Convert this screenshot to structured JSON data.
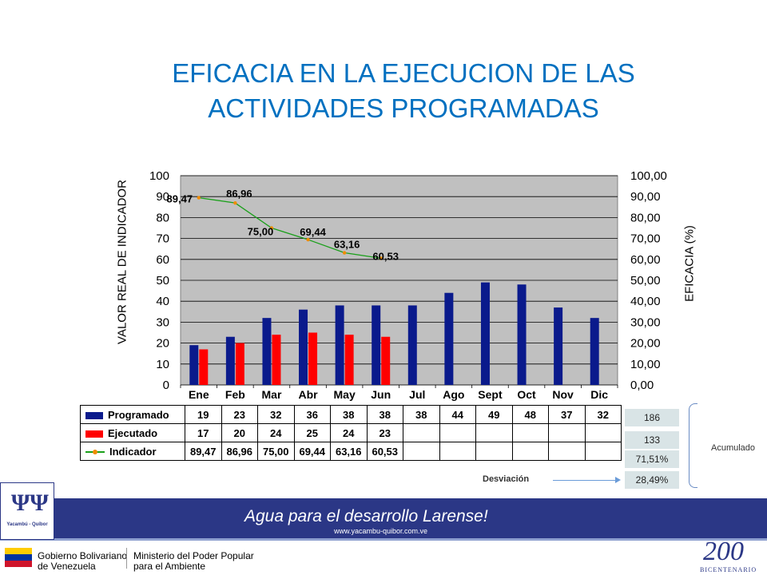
{
  "title": {
    "line1": "EFICACIA EN LA EJECUCION DE LAS",
    "line2": "ACTIVIDADES PROGRAMADAS"
  },
  "chart_data": {
    "type": "bar",
    "categories": [
      "Ene",
      "Feb",
      "Mar",
      "Abr",
      "May",
      "Jun",
      "Jul",
      "Ago",
      "Sept",
      "Oct",
      "Nov",
      "Dic"
    ],
    "series": [
      {
        "name": "Programado",
        "type": "bar",
        "axis": "left",
        "color": "#0a1a8c",
        "values": [
          19,
          23,
          32,
          36,
          38,
          38,
          38,
          44,
          49,
          48,
          37,
          32
        ]
      },
      {
        "name": "Ejecutado",
        "type": "bar",
        "axis": "left",
        "color": "#ff0000",
        "values": [
          17,
          20,
          24,
          25,
          24,
          23,
          null,
          null,
          null,
          null,
          null,
          null
        ]
      },
      {
        "name": "Indicador",
        "type": "line",
        "axis": "right",
        "color": "#1aa01a",
        "marker_color": "#f08c00",
        "values": [
          89.47,
          86.96,
          75.0,
          69.44,
          63.16,
          60.53,
          null,
          null,
          null,
          null,
          null,
          null
        ],
        "labels": [
          "89,47",
          "86,96",
          "75,00",
          "69,44",
          "63,16",
          "60,53"
        ]
      }
    ],
    "ylabel": "VALOR REAL DE INDICADOR",
    "y2label": "EFICACIA (%)",
    "ylim": [
      0,
      100
    ],
    "y2lim": [
      0,
      100
    ],
    "yticks": [
      "0",
      "10",
      "20",
      "30",
      "40",
      "50",
      "60",
      "70",
      "80",
      "90",
      "100"
    ],
    "y2ticks": [
      "0,00",
      "10,00",
      "20,00",
      "30,00",
      "40,00",
      "50,00",
      "60,00",
      "70,00",
      "80,00",
      "90,00",
      "100,00"
    ],
    "grid": true,
    "plot_bg": "#c0c0c0",
    "table": {
      "rows": [
        {
          "label": "Programado",
          "cells": [
            "19",
            "23",
            "32",
            "36",
            "38",
            "38",
            "38",
            "44",
            "49",
            "48",
            "37",
            "32"
          ]
        },
        {
          "label": "Ejecutado",
          "cells": [
            "17",
            "20",
            "24",
            "25",
            "24",
            "23",
            "",
            "",
            "",
            "",
            "",
            ""
          ]
        },
        {
          "label": "Indicador",
          "cells": [
            "89,47",
            "86,96",
            "75,00",
            "69,44",
            "63,16",
            "60,53",
            "",
            "",
            "",
            "",
            "",
            ""
          ]
        }
      ]
    }
  },
  "accumulated": {
    "programado": "186",
    "ejecutado": "133",
    "indicador": "71,51%",
    "desviacion": "28,49%",
    "label": "Acumulado",
    "desviacion_label": "Desviación"
  },
  "footer": {
    "logo_text": "Yacambú - Quíbor",
    "slogan": "Agua para el desarrollo Larense!",
    "website": "www.yacambu-quibor.com.ve",
    "gob_line1": "Gobierno Bolivariano",
    "gob_line2": "de Venezuela",
    "min_line1": "Ministerio del Poder Popular",
    "min_line2": "para el Ambiente",
    "bicentenario_num": "200",
    "bicentenario_text": "BICENTENARIO"
  }
}
